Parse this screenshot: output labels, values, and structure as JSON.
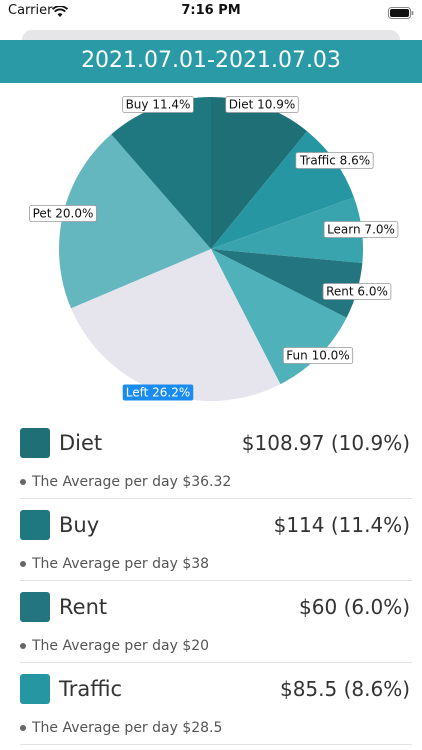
{
  "status_bar": {
    "carrier": "Carrier",
    "time": "7:16 PM"
  },
  "header": {
    "title": "2021.07.01-2021.07.03"
  },
  "chart_data": {
    "type": "pie",
    "slices": [
      {
        "label": "Diet",
        "percent": 10.9,
        "display": "Diet 10.9%",
        "color": "#1e6f76"
      },
      {
        "label": "Traffic",
        "percent": 8.6,
        "display": "Traffic 8.6%",
        "color": "#2696a2"
      },
      {
        "label": "Learn",
        "percent": 7.0,
        "display": "Learn 7.0%",
        "color": "#3aa4ae"
      },
      {
        "label": "Rent",
        "percent": 6.0,
        "display": "Rent 6.0%",
        "color": "#237680"
      },
      {
        "label": "Fun",
        "percent": 10.0,
        "display": "Fun 10.0%",
        "color": "#4fb2ba"
      },
      {
        "label": "Left",
        "percent": 26.2,
        "display": "Left 26.2%",
        "color": "#e6e5ee",
        "highlighted": true
      },
      {
        "label": "Pet",
        "percent": 20.0,
        "display": "Pet 20.0%",
        "color": "#64b7bf"
      },
      {
        "label": "Buy",
        "percent": 11.4,
        "display": "Buy 11.4%",
        "color": "#1f7880"
      }
    ]
  },
  "list": [
    {
      "name": "Diet",
      "amount": "$108.97 (10.9%)",
      "average": "The Average per day $36.32",
      "color": "#1e6f76"
    },
    {
      "name": "Buy",
      "amount": "$114 (11.4%)",
      "average": "The Average per day $38",
      "color": "#1f7880"
    },
    {
      "name": "Rent",
      "amount": "$60 (6.0%)",
      "average": "The Average per day $20",
      "color": "#237680"
    },
    {
      "name": "Traffic",
      "amount": "$85.5 (8.6%)",
      "average": "The Average per day $28.5",
      "color": "#2696a2"
    }
  ]
}
